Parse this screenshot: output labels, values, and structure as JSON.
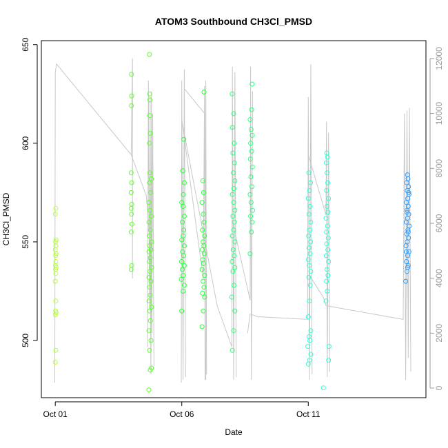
{
  "chart_data": {
    "type": "scatter",
    "title": "ATOM3 Southbound CH3Cl_PMSD",
    "xlabel": "Date",
    "ylabel": "CH3Cl_PMSD",
    "x_ticks": [
      "Oct 01",
      "Oct 06",
      "Oct 11"
    ],
    "x_tick_days": [
      1,
      6,
      11
    ],
    "xlim": [
      0.45,
      15.65
    ],
    "y_ticks": [
      500,
      550,
      600,
      650
    ],
    "ylim": [
      471,
      652
    ],
    "y2_ticks": [
      0,
      2000,
      4000,
      6000,
      8000,
      10000,
      12000
    ],
    "y2lim": [
      -350,
      12650
    ],
    "series": [
      {
        "color": "#b5ff36",
        "points": [
          [
            1.0,
            489
          ],
          [
            1.02,
            495
          ],
          [
            1.0,
            513
          ],
          [
            1.03,
            514
          ],
          [
            1.01,
            515
          ],
          [
            1.02,
            520
          ],
          [
            1.0,
            530
          ],
          [
            1.02,
            534
          ],
          [
            1.01,
            536
          ],
          [
            1.03,
            537
          ],
          [
            1.0,
            538
          ],
          [
            1.02,
            540
          ],
          [
            1.01,
            543
          ],
          [
            1.03,
            544
          ],
          [
            1.0,
            546
          ],
          [
            1.02,
            548
          ],
          [
            1.01,
            550
          ],
          [
            1.03,
            551
          ],
          [
            1.0,
            564
          ],
          [
            1.02,
            567
          ]
        ]
      },
      {
        "color": "#5cff2c",
        "points": [
          [
            4.0,
            536
          ],
          [
            4.02,
            538
          ],
          [
            4.0,
            555
          ],
          [
            4.03,
            559
          ],
          [
            4.01,
            564
          ],
          [
            4.0,
            567
          ],
          [
            4.02,
            569
          ],
          [
            4.0,
            575
          ],
          [
            4.02,
            580
          ],
          [
            4.0,
            585
          ],
          [
            4.01,
            619
          ],
          [
            4.02,
            624
          ],
          [
            4.01,
            635
          ],
          [
            4.7,
            475
          ],
          [
            4.75,
            485
          ],
          [
            4.8,
            486
          ],
          [
            4.72,
            495
          ],
          [
            4.78,
            500
          ],
          [
            4.7,
            505
          ],
          [
            4.76,
            510
          ],
          [
            4.72,
            515
          ],
          [
            4.8,
            517
          ],
          [
            4.7,
            520
          ],
          [
            4.75,
            523
          ],
          [
            4.72,
            527
          ],
          [
            4.78,
            530
          ],
          [
            4.7,
            532
          ],
          [
            4.74,
            535
          ],
          [
            4.8,
            537
          ],
          [
            4.72,
            540
          ],
          [
            4.76,
            542
          ],
          [
            4.7,
            545
          ],
          [
            4.78,
            546
          ],
          [
            4.73,
            548
          ],
          [
            4.8,
            550
          ],
          [
            4.71,
            553
          ],
          [
            4.76,
            556
          ],
          [
            4.7,
            560
          ],
          [
            4.79,
            563
          ],
          [
            4.74,
            566
          ],
          [
            4.7,
            570
          ],
          [
            4.77,
            575
          ],
          [
            4.72,
            580
          ],
          [
            4.8,
            582
          ],
          [
            4.74,
            585
          ],
          [
            4.72,
            600
          ],
          [
            4.75,
            605
          ],
          [
            4.73,
            614
          ],
          [
            4.74,
            622
          ],
          [
            4.73,
            625
          ],
          [
            4.72,
            645
          ]
        ]
      },
      {
        "color": "#2cff3a",
        "points": [
          [
            6.0,
            515
          ],
          [
            6.05,
            525
          ],
          [
            6.1,
            528
          ],
          [
            5.98,
            531
          ],
          [
            6.06,
            533
          ],
          [
            6.02,
            536
          ],
          [
            6.1,
            538
          ],
          [
            5.99,
            540
          ],
          [
            6.07,
            543
          ],
          [
            6.03,
            545
          ],
          [
            6.1,
            548
          ],
          [
            6.0,
            551
          ],
          [
            6.05,
            553
          ],
          [
            6.08,
            556
          ],
          [
            6.02,
            560
          ],
          [
            6.1,
            563
          ],
          [
            6.05,
            568
          ],
          [
            6.0,
            570
          ],
          [
            6.06,
            574
          ],
          [
            6.1,
            580
          ],
          [
            6.04,
            586
          ],
          [
            6.08,
            602
          ],
          [
            6.8,
            507
          ],
          [
            6.85,
            515
          ],
          [
            6.9,
            522
          ],
          [
            6.82,
            524
          ],
          [
            6.88,
            527
          ],
          [
            6.84,
            530
          ],
          [
            6.9,
            533
          ],
          [
            6.8,
            536
          ],
          [
            6.86,
            539
          ],
          [
            6.83,
            541
          ],
          [
            6.89,
            544
          ],
          [
            6.81,
            546
          ],
          [
            6.87,
            548
          ],
          [
            6.84,
            550
          ],
          [
            6.9,
            553
          ],
          [
            6.82,
            556
          ],
          [
            6.88,
            560
          ],
          [
            6.85,
            564
          ],
          [
            6.8,
            570
          ],
          [
            6.86,
            575
          ],
          [
            6.83,
            581
          ],
          [
            6.88,
            626
          ]
        ]
      },
      {
        "color": "#2cff7a",
        "points": [
          [
            8.0,
            495
          ],
          [
            8.05,
            505
          ],
          [
            8.1,
            515
          ],
          [
            7.98,
            522
          ],
          [
            8.06,
            528
          ],
          [
            8.02,
            535
          ],
          [
            8.1,
            537
          ],
          [
            7.99,
            540
          ],
          [
            8.07,
            543
          ],
          [
            8.03,
            546
          ],
          [
            8.1,
            550
          ],
          [
            8.0,
            553
          ],
          [
            8.05,
            556
          ],
          [
            8.08,
            560
          ],
          [
            8.02,
            563
          ],
          [
            8.1,
            566
          ],
          [
            8.05,
            570
          ],
          [
            8.0,
            574
          ],
          [
            8.06,
            577
          ],
          [
            8.1,
            581
          ],
          [
            8.04,
            585
          ],
          [
            8.08,
            590
          ],
          [
            8.02,
            595
          ],
          [
            8.07,
            600
          ],
          [
            8.0,
            608
          ],
          [
            8.05,
            615
          ],
          [
            7.99,
            625
          ],
          [
            8.7,
            544
          ],
          [
            8.75,
            555
          ],
          [
            8.78,
            560
          ],
          [
            8.72,
            563
          ],
          [
            8.8,
            566
          ],
          [
            8.74,
            570
          ],
          [
            8.7,
            574
          ],
          [
            8.77,
            578
          ],
          [
            8.73,
            583
          ],
          [
            8.79,
            588
          ],
          [
            8.71,
            592
          ],
          [
            8.76,
            596
          ],
          [
            8.72,
            600
          ],
          [
            8.78,
            604
          ],
          [
            8.74,
            607
          ],
          [
            8.7,
            612
          ],
          [
            8.76,
            617
          ],
          [
            8.78,
            630
          ]
        ]
      },
      {
        "color": "#2cffd8",
        "points": [
          [
            11.0,
            488
          ],
          [
            11.05,
            490
          ],
          [
            11.1,
            493
          ],
          [
            10.98,
            497
          ],
          [
            11.06,
            500
          ],
          [
            11.03,
            502
          ],
          [
            11.1,
            505
          ],
          [
            11.0,
            512
          ],
          [
            11.05,
            520
          ],
          [
            11.08,
            528
          ],
          [
            11.02,
            532
          ],
          [
            11.1,
            535
          ],
          [
            11.04,
            538
          ],
          [
            11.0,
            541
          ],
          [
            11.07,
            544
          ],
          [
            11.03,
            547
          ],
          [
            11.09,
            550
          ],
          [
            11.01,
            553
          ],
          [
            11.06,
            556
          ],
          [
            11.1,
            560
          ],
          [
            11.03,
            564
          ],
          [
            11.07,
            568
          ],
          [
            11.0,
            572
          ],
          [
            11.05,
            576
          ],
          [
            11.09,
            580
          ],
          [
            11.02,
            585
          ],
          [
            11.6,
            476
          ],
          [
            11.8,
            490
          ],
          [
            11.82,
            497
          ],
          [
            11.7,
            520
          ],
          [
            11.75,
            525
          ],
          [
            11.72,
            530
          ],
          [
            11.78,
            533
          ],
          [
            11.74,
            536
          ],
          [
            11.8,
            540
          ],
          [
            11.71,
            543
          ],
          [
            11.77,
            546
          ],
          [
            11.73,
            549
          ],
          [
            11.79,
            552
          ],
          [
            11.72,
            555
          ],
          [
            11.76,
            558
          ],
          [
            11.7,
            562
          ],
          [
            11.78,
            565
          ],
          [
            11.74,
            568
          ],
          [
            11.8,
            572
          ],
          [
            11.72,
            576
          ],
          [
            11.77,
            580
          ],
          [
            11.74,
            585
          ],
          [
            11.71,
            590
          ],
          [
            11.76,
            593
          ],
          [
            11.73,
            595
          ]
        ]
      },
      {
        "color": "#2c9cff",
        "points": [
          [
            14.85,
            530
          ],
          [
            14.9,
            535
          ],
          [
            14.95,
            538
          ],
          [
            14.88,
            540
          ],
          [
            14.93,
            543
          ],
          [
            14.98,
            545
          ],
          [
            14.86,
            548
          ],
          [
            14.91,
            550
          ],
          [
            14.96,
            552
          ],
          [
            14.89,
            554
          ],
          [
            14.94,
            556
          ],
          [
            14.99,
            558
          ],
          [
            14.87,
            560
          ],
          [
            14.92,
            562
          ],
          [
            14.97,
            564
          ],
          [
            14.9,
            566
          ],
          [
            14.95,
            568
          ],
          [
            14.88,
            570
          ],
          [
            14.93,
            572
          ],
          [
            14.98,
            574
          ],
          [
            14.91,
            576
          ],
          [
            14.96,
            578
          ],
          [
            14.89,
            580
          ],
          [
            14.94,
            582
          ],
          [
            14.92,
            584
          ],
          [
            14.97,
            575
          ],
          [
            14.9,
            565
          ],
          [
            14.95,
            555
          ],
          [
            14.87,
            545
          ],
          [
            14.93,
            537
          ]
        ]
      }
    ],
    "line_series": {
      "color": "#c8c8c8",
      "axis": "right",
      "segments": [
        [
          [
            0.98,
            200
          ],
          [
            1.0,
            11500
          ],
          [
            1.05,
            11800
          ],
          [
            4.0,
            8500
          ],
          [
            4.6,
            7000
          ],
          [
            4.75,
            5200
          ],
          [
            4.78,
            600
          ]
        ],
        [
          [
            4.0,
            8500
          ],
          [
            4.05,
            12000
          ],
          [
            4.05,
            4000
          ]
        ],
        [
          [
            4.65,
            1500
          ],
          [
            4.68,
            11200
          ],
          [
            4.72,
            3000
          ],
          [
            4.75,
            10600
          ],
          [
            4.78,
            500
          ],
          [
            4.8,
            10800
          ],
          [
            4.82,
            2000
          ],
          [
            4.85,
            10000
          ],
          [
            4.9,
            800
          ]
        ],
        [
          [
            5.98,
            200
          ],
          [
            6.0,
            11200
          ],
          [
            6.05,
            300
          ],
          [
            6.1,
            11600
          ],
          [
            6.15,
            400
          ],
          [
            6.1,
            10900
          ],
          [
            6.9,
            10000
          ],
          [
            6.95,
            300
          ]
        ],
        [
          [
            6.0,
            9800
          ],
          [
            6.85,
            4000
          ],
          [
            6.9,
            11000
          ],
          [
            6.92,
            300
          ],
          [
            6.95,
            11200
          ],
          [
            6.98,
            500
          ]
        ],
        [
          [
            6.05,
            9500
          ],
          [
            7.4,
            3000
          ],
          [
            7.98,
            1500
          ],
          [
            8.0,
            11700
          ],
          [
            8.05,
            300
          ],
          [
            8.1,
            11500
          ],
          [
            8.15,
            400
          ]
        ],
        [
          [
            8.02,
            6000
          ],
          [
            8.7,
            3200
          ],
          [
            8.72,
            11700
          ],
          [
            8.75,
            300
          ],
          [
            8.8,
            10800
          ]
        ],
        [
          [
            8.6,
            2000
          ],
          [
            8.7,
            2700
          ],
          [
            9.0,
            2600
          ],
          [
            10.97,
            2500
          ],
          [
            11.0,
            10600
          ],
          [
            11.05,
            300
          ],
          [
            11.1,
            11800
          ],
          [
            11.15,
            500
          ]
        ],
        [
          [
            11.0,
            8500
          ],
          [
            11.7,
            6300
          ],
          [
            11.72,
            9700
          ],
          [
            11.75,
            400
          ],
          [
            11.8,
            9300
          ],
          [
            11.85,
            600
          ]
        ],
        [
          [
            11.05,
            4100
          ],
          [
            11.6,
            3300
          ],
          [
            11.7,
            3000
          ],
          [
            14.75,
            2500
          ],
          [
            14.8,
            10000
          ],
          [
            14.85,
            300
          ],
          [
            14.9,
            10100
          ],
          [
            14.95,
            1100
          ],
          [
            15.0,
            10200
          ],
          [
            15.05,
            600
          ]
        ]
      ]
    }
  }
}
